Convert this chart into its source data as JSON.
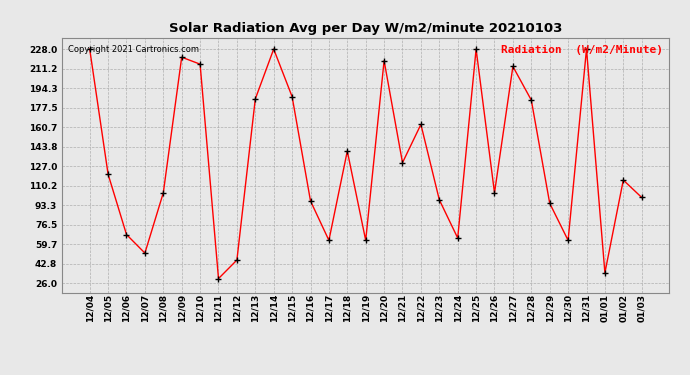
{
  "title": "Solar Radiation Avg per Day W/m2/minute 20210103",
  "copyright": "Copyright 2021 Cartronics.com",
  "legend_label": "Radiation  (W/m2/Minute)",
  "dates": [
    "12/04",
    "12/05",
    "12/06",
    "12/07",
    "12/08",
    "12/09",
    "12/10",
    "12/11",
    "12/12",
    "12/13",
    "12/14",
    "12/15",
    "12/16",
    "12/17",
    "12/18",
    "12/19",
    "12/20",
    "12/21",
    "12/22",
    "12/23",
    "12/24",
    "12/25",
    "12/26",
    "12/27",
    "12/28",
    "12/29",
    "12/30",
    "12/31",
    "01/01",
    "01/02",
    "01/03"
  ],
  "values": [
    228.0,
    120.0,
    68.0,
    52.0,
    104.0,
    221.0,
    215.0,
    30.0,
    46.0,
    185.0,
    228.0,
    187.0,
    97.0,
    63.0,
    140.0,
    63.0,
    218.0,
    130.0,
    163.0,
    98.0,
    65.0,
    228.0,
    104.0,
    213.0,
    184.0,
    95.0,
    63.0,
    228.0,
    35.0,
    115.0,
    100.0
  ],
  "line_color": "red",
  "marker_color": "black",
  "background_color": "#e8e8e8",
  "grid_color": "#aaaaaa",
  "yticks": [
    26.0,
    42.8,
    59.7,
    76.5,
    93.3,
    110.2,
    127.0,
    143.8,
    160.7,
    177.5,
    194.3,
    211.2,
    228.0
  ],
  "ylim": [
    18.0,
    238.0
  ],
  "title_fontsize": 9.5,
  "copyright_fontsize": 6.0,
  "legend_fontsize": 8.0,
  "tick_fontsize": 6.5
}
